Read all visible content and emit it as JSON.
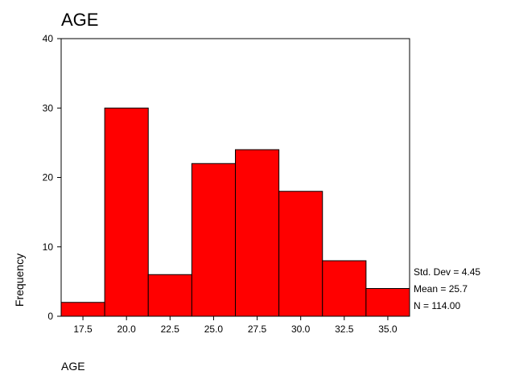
{
  "chart_data": {
    "type": "bar",
    "title": "AGE",
    "xlabel": "AGE",
    "ylabel": "Frequency",
    "categories": [
      "17.5",
      "20.0",
      "22.5",
      "25.0",
      "27.5",
      "30.0",
      "32.5",
      "35.0"
    ],
    "values": [
      2,
      30,
      6,
      22,
      24,
      18,
      8,
      4
    ],
    "ylim": [
      0,
      40
    ],
    "yticks": [
      0,
      10,
      20,
      30,
      40
    ],
    "bar_color": "#ff0000",
    "grid": false,
    "stats": {
      "std_dev": "Std. Dev = 4.45",
      "mean": "Mean = 25.7",
      "n": "N = 114.00"
    }
  }
}
